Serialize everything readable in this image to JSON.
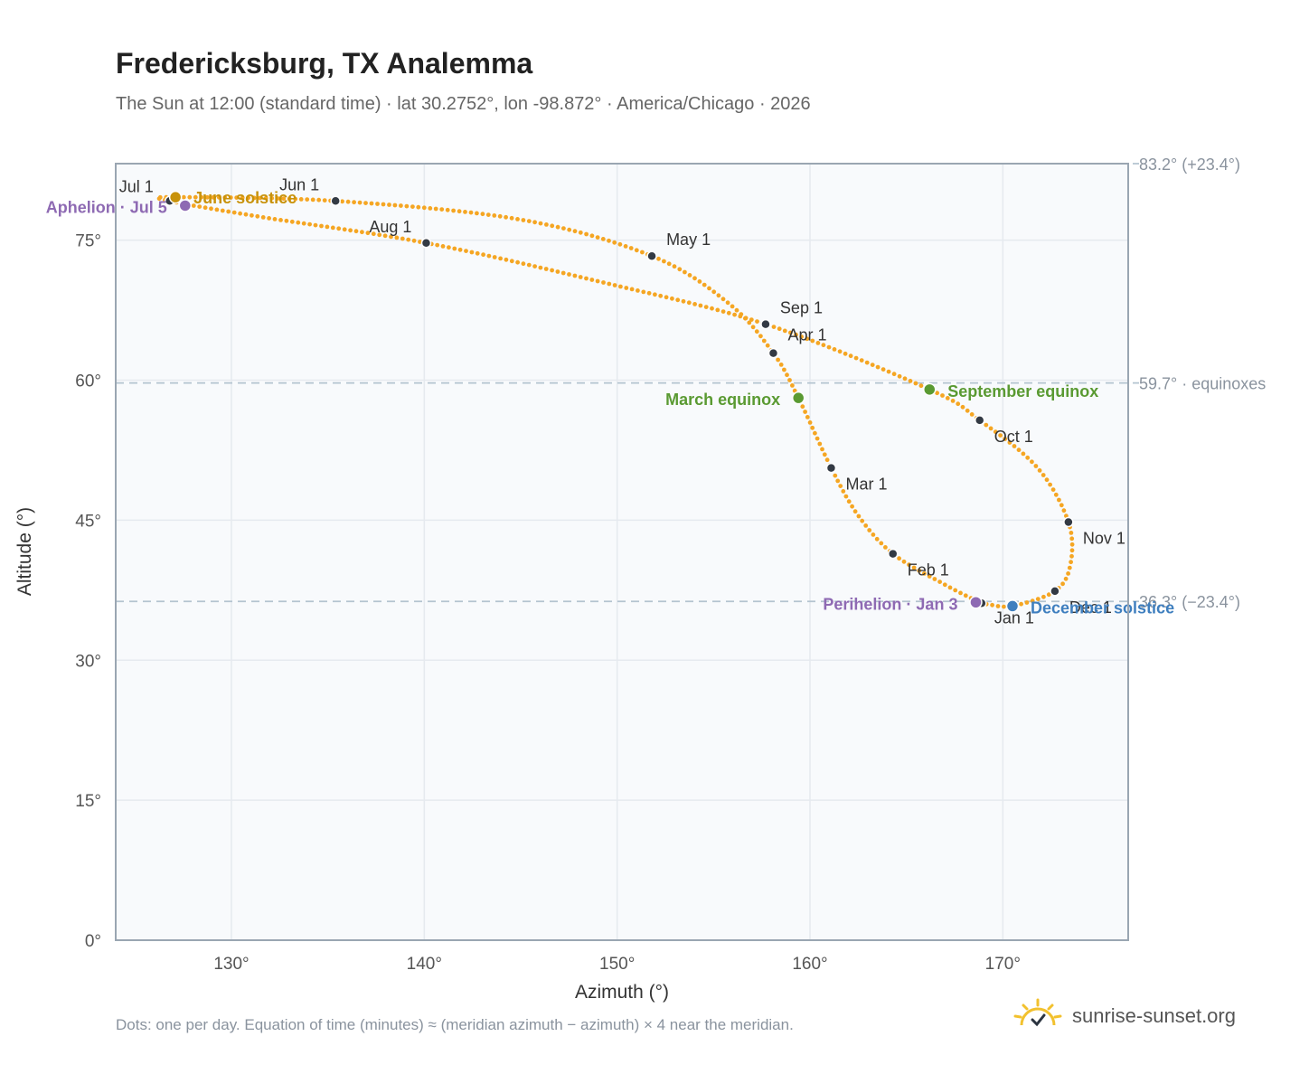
{
  "header": {
    "title": "Fredericksburg, TX Analemma",
    "subtitle": "The Sun at 12:00 (standard time) · lat 30.2752°, lon -98.872° · America/Chicago · 2026"
  },
  "footer": {
    "note": "Dots: one per day. Equation of time (minutes) ≈ (meridian azimuth − azimuth) × 4 near the meridian.",
    "brand": "sunrise-sunset.org"
  },
  "colors": {
    "curve": "#f5a623",
    "month_dot": "#333a44",
    "solstice_june": "#c8920a",
    "solstice_december": "#3f7fbf",
    "equinox": "#5a9a32",
    "apsis": "#8e6ab3",
    "plot_bg": "#f8fafc",
    "grid": "#e6eaef",
    "reference_line": "#b4c4d0"
  },
  "chart_data": {
    "type": "scatter",
    "xlabel": "Azimuth (°)",
    "ylabel": "Altitude (°)",
    "xlim": [
      124,
      176.5
    ],
    "ylim": [
      0,
      83.2
    ],
    "xticks": [
      130,
      140,
      150,
      160,
      170
    ],
    "xtick_labels": [
      "130°",
      "140°",
      "150°",
      "160°",
      "170°"
    ],
    "yticks": [
      0,
      15,
      30,
      45,
      60,
      75
    ],
    "ytick_labels": [
      "0°",
      "15°",
      "30°",
      "45°",
      "60°",
      "75°"
    ],
    "grid": true,
    "reference_lines": [
      {
        "y": 83.2,
        "label": "83.2° (+23.4°)"
      },
      {
        "y": 59.7,
        "label": "59.7° · equinoxes"
      },
      {
        "y": 36.3,
        "label": "36.3° (−23.4°)"
      }
    ],
    "series": [
      {
        "points": [
          {
            "date": "Jan 1",
            "az": 168.9,
            "alt": 36.1
          },
          {
            "date": "Jan 15",
            "az": 166.9,
            "alt": 38.2
          },
          {
            "date": "Feb 1",
            "az": 164.3,
            "alt": 41.4
          },
          {
            "date": "Feb 15",
            "az": 162.5,
            "alt": 45.5
          },
          {
            "date": "Mar 1",
            "az": 161.1,
            "alt": 50.6
          },
          {
            "date": "Mar 20",
            "az": 159.4,
            "alt": 58.1
          },
          {
            "date": "Apr 1",
            "az": 158.1,
            "alt": 62.9
          },
          {
            "date": "Apr 15",
            "az": 155.8,
            "alt": 68.2
          },
          {
            "date": "May 1",
            "az": 151.8,
            "alt": 73.3
          },
          {
            "date": "May 15",
            "az": 145.0,
            "alt": 77.2
          },
          {
            "date": "Jun 1",
            "az": 135.4,
            "alt": 79.2
          },
          {
            "date": "Jun 21",
            "az": 127.1,
            "alt": 79.6
          },
          {
            "date": "Jul 1",
            "az": 126.8,
            "alt": 79.2
          },
          {
            "date": "Jul 15",
            "az": 131.5,
            "alt": 77.5
          },
          {
            "date": "Aug 1",
            "az": 140.1,
            "alt": 74.7
          },
          {
            "date": "Aug 15",
            "az": 149.0,
            "alt": 70.6
          },
          {
            "date": "Sep 1",
            "az": 157.7,
            "alt": 66.0
          },
          {
            "date": "Sep 22",
            "az": 166.2,
            "alt": 59.0
          },
          {
            "date": "Oct 1",
            "az": 168.8,
            "alt": 55.7
          },
          {
            "date": "Oct 15",
            "az": 171.8,
            "alt": 50.6
          },
          {
            "date": "Nov 1",
            "az": 173.4,
            "alt": 44.8
          },
          {
            "date": "Nov 15",
            "az": 173.5,
            "alt": 40.2
          },
          {
            "date": "Dec 1",
            "az": 172.7,
            "alt": 37.4
          },
          {
            "date": "Dec 21",
            "az": 170.5,
            "alt": 35.8
          },
          {
            "date": "Dec 31",
            "az": 169.2,
            "alt": 36.0
          }
        ]
      }
    ],
    "month_markers": [
      {
        "label": "Jan 1",
        "az": 168.9,
        "alt": 36.1
      },
      {
        "label": "Feb 1",
        "az": 164.3,
        "alt": 41.4
      },
      {
        "label": "Mar 1",
        "az": 161.1,
        "alt": 50.6
      },
      {
        "label": "Apr 1",
        "az": 158.1,
        "alt": 62.9
      },
      {
        "label": "May 1",
        "az": 151.8,
        "alt": 73.3
      },
      {
        "label": "Jun 1",
        "az": 135.4,
        "alt": 79.2
      },
      {
        "label": "Jul 1",
        "az": 126.8,
        "alt": 79.2
      },
      {
        "label": "Aug 1",
        "az": 140.1,
        "alt": 74.7
      },
      {
        "label": "Sep 1",
        "az": 157.7,
        "alt": 66.0
      },
      {
        "label": "Oct 1",
        "az": 168.8,
        "alt": 55.7
      },
      {
        "label": "Nov 1",
        "az": 173.4,
        "alt": 44.8
      },
      {
        "label": "Dec 1",
        "az": 172.7,
        "alt": 37.4
      }
    ],
    "events": [
      {
        "label": "June solstice",
        "az": 127.1,
        "alt": 79.6,
        "color": "#c8920a"
      },
      {
        "label": "Aphelion · Jul 5",
        "az": 127.6,
        "alt": 78.7,
        "color": "#8e6ab3"
      },
      {
        "label": "March equinox",
        "az": 159.4,
        "alt": 58.1,
        "color": "#5a9a32"
      },
      {
        "label": "September equinox",
        "az": 166.2,
        "alt": 59.0,
        "color": "#5a9a32"
      },
      {
        "label": "Perihelion · Jan 3",
        "az": 168.6,
        "alt": 36.2,
        "color": "#8e6ab3"
      },
      {
        "label": "December solstice",
        "az": 170.5,
        "alt": 35.8,
        "color": "#3f7fbf"
      }
    ]
  }
}
